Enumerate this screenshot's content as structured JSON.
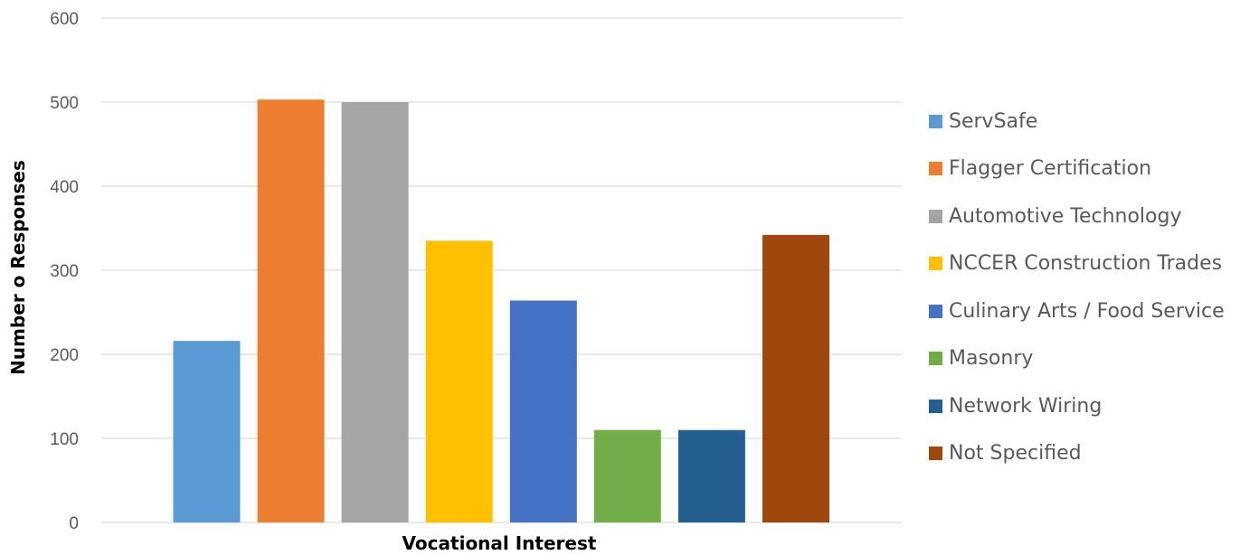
{
  "chart_data": {
    "type": "bar",
    "xlabel": "Vocational Interest",
    "ylabel": "Number o Responses",
    "ylim": [
      0,
      600
    ],
    "yticks": [
      "0",
      "100",
      "200",
      "300",
      "400",
      "500",
      "600"
    ],
    "grid": true,
    "legend_position": "right",
    "series": [
      {
        "name": "ServSafe",
        "value": 216,
        "color": "#5B9BD5"
      },
      {
        "name": "Flagger Certification",
        "value": 503,
        "color": "#ED7D31"
      },
      {
        "name": "Automotive Technology",
        "value": 500,
        "color": "#A5A5A5"
      },
      {
        "name": "NCCER Construction Trades",
        "value": 335,
        "color": "#FFC000"
      },
      {
        "name": "Culinary Arts / Food Service",
        "value": 264,
        "color": "#4472C4"
      },
      {
        "name": "Masonry",
        "value": 110,
        "color": "#70AD47"
      },
      {
        "name": "Network Wiring",
        "value": 110,
        "color": "#255E91"
      },
      {
        "name": "Not Specified",
        "value": 342,
        "color": "#9E480E"
      }
    ]
  }
}
